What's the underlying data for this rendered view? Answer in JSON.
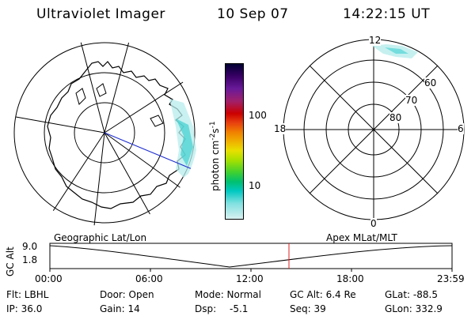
{
  "header": {
    "instrument": "Ultraviolet Imager",
    "date": "10 Sep 07",
    "time": "14:22:15 UT"
  },
  "colorbar": {
    "unit_label": "photon cm",
    "unit_exp1": "-2",
    "unit_mid": "s",
    "unit_exp2": "-1",
    "ticks": [
      "100",
      "10"
    ],
    "colors": [
      "#000033",
      "#3a0066",
      "#6a1a99",
      "#a0206a",
      "#cc0000",
      "#e84010",
      "#f08000",
      "#f0b000",
      "#e8e000",
      "#a8e000",
      "#40d030",
      "#00c070",
      "#00c8c0",
      "#80e0e0",
      "#d8f0f0"
    ]
  },
  "polar_plot": {
    "mlt_labels": {
      "top": "12",
      "left": "18",
      "right": "6",
      "bottom": "0"
    },
    "lat_labels": [
      "60",
      "70",
      "80"
    ]
  },
  "timeline": {
    "left_caption": "Geographic Lat/Lon",
    "right_caption": "Apex MLat/MLT",
    "axis_label": "GC Alt",
    "ytick_top": "9.0",
    "ytick_bottom": "1.8",
    "xticks": [
      "00:00",
      "06:00",
      "12:00",
      "18:00",
      "23:59"
    ],
    "current_marker_color": "#e02020"
  },
  "status": {
    "flt": "Flt: LBHL",
    "ip": "IP: 36.0",
    "door": "Door: Open",
    "gain": "Gain: 14",
    "mode": "Mode: Normal",
    "dsp_label": "Dsp:",
    "dsp_value": "-5.1",
    "gc_alt": "GC Alt: 6.4 Re",
    "seq": "Seq: 39",
    "glat": "GLat: -88.5",
    "glon": "GLon: 332.9"
  }
}
